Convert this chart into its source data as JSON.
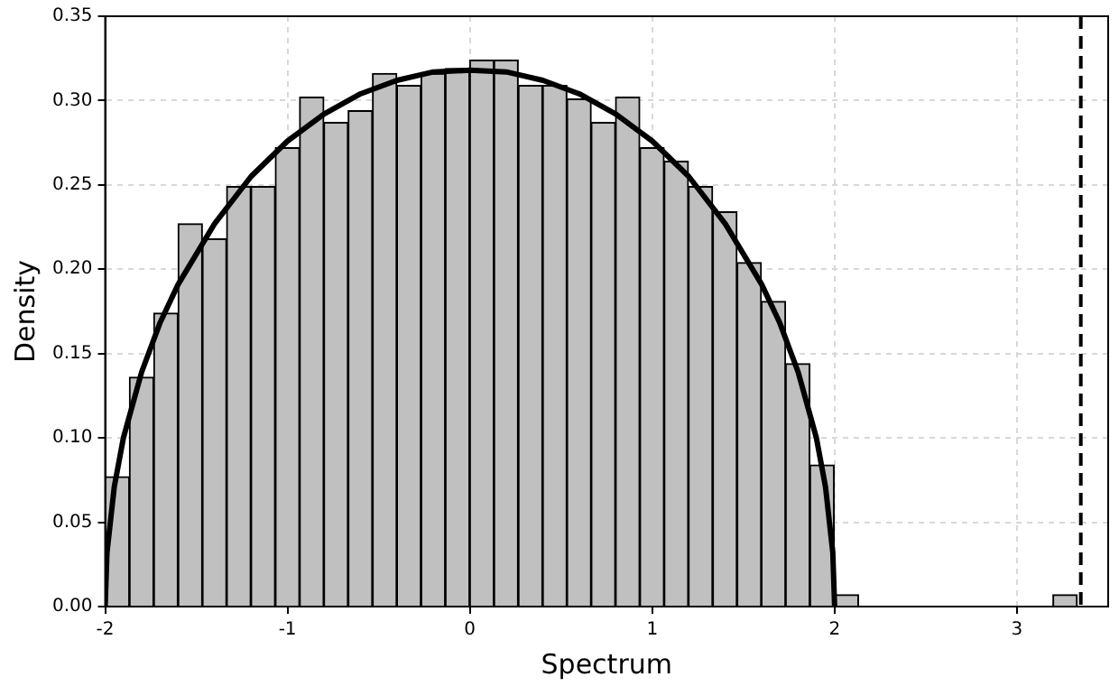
{
  "chart_data": {
    "type": "histogram",
    "xlabel": "Spectrum",
    "ylabel": "Density",
    "bins": [
      -2,
      -1.867,
      -1.734,
      -1.6,
      -1.467,
      -1.334,
      -1.201,
      -1.067,
      -0.934,
      -0.801,
      -0.668,
      -0.534,
      -0.401,
      -0.268,
      -0.135,
      -0.001,
      0.132,
      0.265,
      0.399,
      0.532,
      0.665,
      0.798,
      0.932,
      1.065,
      1.198,
      1.331,
      1.465,
      1.598,
      1.731,
      1.864,
      1.998,
      2.131,
      2.264,
      2.397,
      2.531,
      2.664,
      2.797,
      2.93,
      3.064,
      3.197,
      3.33
    ],
    "values": [
      0.077,
      0.136,
      0.174,
      0.227,
      0.218,
      0.249,
      0.249,
      0.272,
      0.302,
      0.287,
      0.294,
      0.316,
      0.309,
      0.316,
      0.319,
      0.324,
      0.324,
      0.309,
      0.309,
      0.301,
      0.287,
      0.302,
      0.272,
      0.264,
      0.249,
      0.234,
      0.204,
      0.181,
      0.144,
      0.084,
      0.007,
      0,
      0,
      0,
      0,
      0,
      0,
      0,
      0,
      0.007
    ],
    "color": "#c0c0c0",
    "series": [
      {
        "type": "line",
        "color": "#000000",
        "x": [
          -2,
          -1.99,
          -1.95,
          -1.9,
          -1.8,
          -1.7,
          -1.6,
          -1.4,
          -1.2,
          -1,
          -0.8,
          -0.6,
          -0.4,
          -0.2,
          0,
          0.2,
          0.4,
          0.6,
          0.8,
          1,
          1.2,
          1.4,
          1.6,
          1.7,
          1.8,
          1.9,
          1.95,
          1.99,
          2
        ],
        "values": [
          0,
          0.032,
          0.071,
          0.1,
          0.139,
          0.168,
          0.191,
          0.227,
          0.255,
          0.276,
          0.292,
          0.304,
          0.312,
          0.317,
          0.318,
          0.317,
          0.312,
          0.304,
          0.292,
          0.276,
          0.255,
          0.227,
          0.191,
          0.168,
          0.139,
          0.1,
          0.071,
          0.032,
          0
        ]
      }
    ],
    "ref_lines": [
      {
        "axis": "x",
        "value": 3.35,
        "color": "#000000",
        "line_style": "dashed"
      }
    ],
    "xlim": [
      -2,
      3.5
    ],
    "xticks": [
      -2,
      -1,
      0,
      1,
      2,
      3
    ],
    "ylim": [
      0,
      0.35
    ],
    "yticks": [
      {
        "value": 0,
        "label": "0.00"
      },
      {
        "value": 0.05,
        "label": "0.05"
      },
      {
        "value": 0.1,
        "label": "0.10"
      },
      {
        "value": 0.15,
        "label": "0.15"
      },
      {
        "value": 0.2,
        "label": "0.20"
      },
      {
        "value": 0.25,
        "label": "0.25"
      },
      {
        "value": 0.3,
        "label": "0.30"
      },
      {
        "value": 0.35,
        "label": "0.35"
      }
    ],
    "grid": true,
    "marker": "none",
    "legend": false
  }
}
